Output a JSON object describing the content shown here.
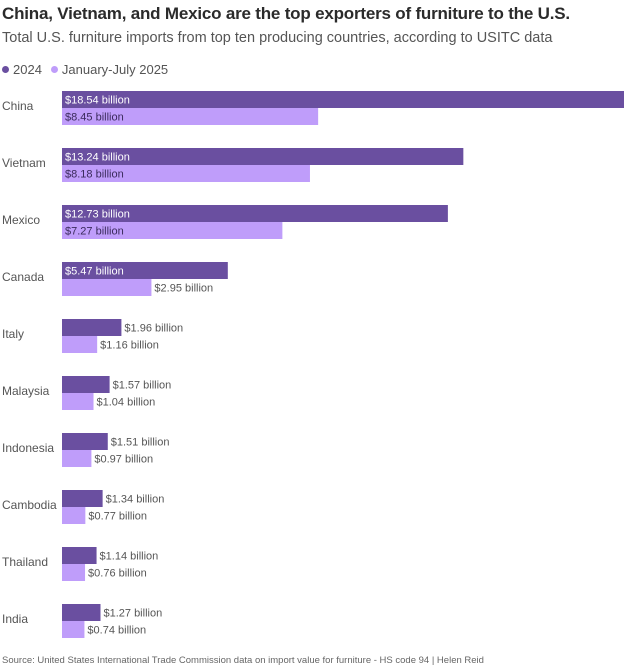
{
  "colors": {
    "series_2024": "#6a4fa0",
    "series_2025": "#bf9dfa"
  },
  "chart_data": {
    "type": "bar",
    "orientation": "horizontal",
    "title": "China, Vietnam, and Mexico are the top exporters of furniture to the U.S.",
    "subtitle": "Total U.S. furniture imports from top ten producing countries, according to USITC data",
    "xlabel": "",
    "ylabel": "",
    "unit": "billion USD",
    "xlim": [
      0,
      18.54
    ],
    "categories": [
      "China",
      "Vietnam",
      "Mexico",
      "Canada",
      "Italy",
      "Malaysia",
      "Indonesia",
      "Cambodia",
      "Thailand",
      "India"
    ],
    "series": [
      {
        "name": "2024",
        "values": [
          18.54,
          13.24,
          12.73,
          5.47,
          1.96,
          1.57,
          1.51,
          1.34,
          1.14,
          1.27
        ],
        "labels": [
          "$18.54 billion",
          "$13.24 billion",
          "$12.73 billion",
          "$5.47 billion",
          "$1.96 billion",
          "$1.57 billion",
          "$1.51 billion",
          "$1.34 billion",
          "$1.14 billion",
          "$1.27 billion"
        ]
      },
      {
        "name": "January-July 2025",
        "values": [
          8.45,
          8.18,
          7.27,
          2.95,
          1.16,
          1.04,
          0.97,
          0.77,
          0.76,
          0.74
        ],
        "labels": [
          "$8.45 billion",
          "$8.18 billion",
          "$7.27 billion",
          "$2.95 billion",
          "$1.16 billion",
          "$1.04 billion",
          "$0.97 billion",
          "$0.77 billion",
          "$0.76 billion",
          "$0.74 billion"
        ]
      }
    ],
    "legend": "top-left",
    "grid": false
  },
  "source": "Source: United States International Trade Commission data on import value for furniture - HS code 94 | Helen Reid"
}
